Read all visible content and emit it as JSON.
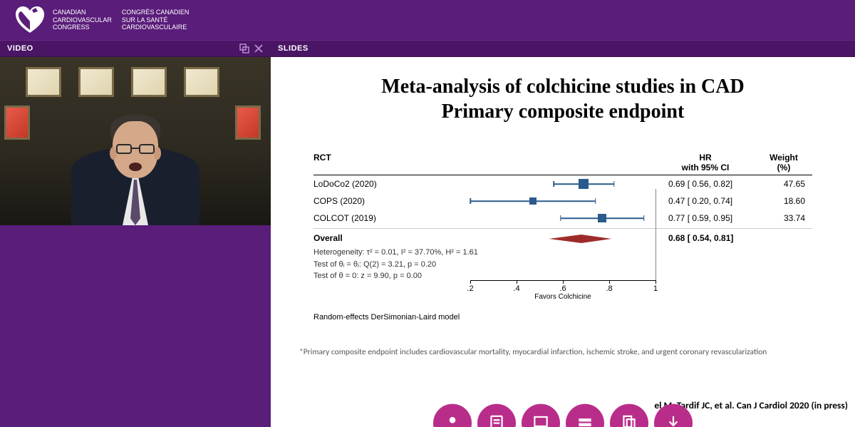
{
  "header": {
    "org_en_1": "CANADIAN",
    "org_en_2": "CARDIOVASCULAR",
    "org_en_3": "CONGRESS",
    "org_fr_1": "CONGRÈS CANADIEN",
    "org_fr_2": "SUR LA SANTÉ",
    "org_fr_3": "CARDIOVASCULAIRE"
  },
  "panels": {
    "video": "VIDEO",
    "slides": "SLIDES"
  },
  "slide": {
    "title_line1": "Meta-analysis of colchicine studies in CAD",
    "title_line2": "Primary composite endpoint",
    "forest": {
      "col_rct": "RCT",
      "col_hr_1": "HR",
      "col_hr_2": "with 95% CI",
      "col_wt_1": "Weight",
      "col_wt_2": "(%)",
      "axis_min": 0.2,
      "axis_max": 1.0,
      "axis_ticks": [
        ".2",
        ".4",
        ".6",
        ".8",
        "1"
      ],
      "axis_label": "Favors Colchicine",
      "marker_color": "#2b5b8c",
      "diamond_color": "#9e2b2b",
      "rows": [
        {
          "name": "LoDoCo2 (2020)",
          "est": 0.69,
          "lo": 0.56,
          "hi": 0.82,
          "hr_txt": "0.69 [ 0.56,  0.82]",
          "wt": "47.65",
          "size": 14
        },
        {
          "name": "COPS (2020)",
          "est": 0.47,
          "lo": 0.2,
          "hi": 0.74,
          "hr_txt": "0.47 [ 0.20,  0.74]",
          "wt": "18.60",
          "size": 10
        },
        {
          "name": "COLCOT (2019)",
          "est": 0.77,
          "lo": 0.59,
          "hi": 0.95,
          "hr_txt": "0.77 [ 0.59,  0.95]",
          "wt": "33.74",
          "size": 12
        }
      ],
      "overall": {
        "label": "Overall",
        "est": 0.68,
        "lo": 0.54,
        "hi": 0.81,
        "hr_txt": "0.68 [ 0.54,  0.81]"
      },
      "het_line": "Heterogeneity: τ² = 0.01, I² = 37.70%, H² = 1.61",
      "test1": "Test of θᵢ = θⱼ: Q(2) = 3.21, p = 0.20",
      "test2": "Test of θ = 0: z = 9.90, p = 0.00",
      "model": "Random-effects DerSimonian-Laird model"
    },
    "footnote": "*Primary composite endpoint includes cardiovascular mortality, myocardial infarction, ischemic stroke, and urgent coronary revascularization",
    "citation": "el M, Tardif JC, et al. Can J Cardiol 2020 (in press)"
  },
  "colors": {
    "brand_purple": "#5a1d7a",
    "panel_header": "#4a1565",
    "circle_btn": "#b92d8a"
  }
}
